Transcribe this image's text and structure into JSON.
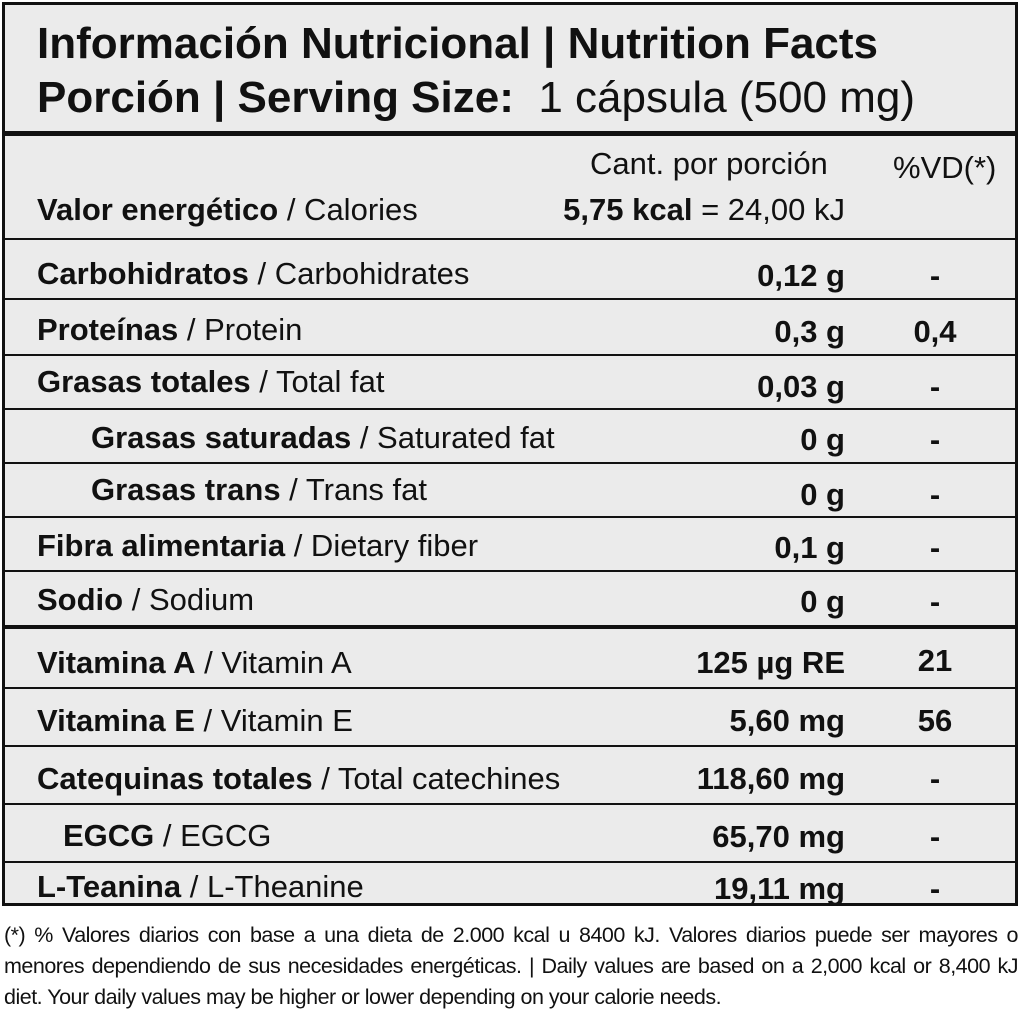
{
  "header": {
    "title": "Información Nutricional | Nutrition Facts",
    "serving_label": "Porción | Serving Size:",
    "serving_value": "1 cápsula (500 mg)"
  },
  "columns": {
    "amount_header": "Cant. por porción",
    "dv_header": "%VD(*)"
  },
  "energy": {
    "label_es": "Valor energético",
    "label_en": " / Calories",
    "kcal": "5,75 kcal",
    "kj": " = 24,00 kJ"
  },
  "rows": [
    {
      "label_es": "Carbohidratos",
      "label_en": " / Carbohidrates",
      "amount": "0,12 g",
      "dv": "-"
    },
    {
      "label_es": "Proteínas",
      "label_en": " / Protein",
      "amount": "0,3 g",
      "dv": "0,4"
    },
    {
      "label_es": "Grasas totales",
      "label_en": " / Total fat",
      "amount": "0,03 g",
      "dv": "-"
    },
    {
      "label_es": "Grasas saturadas",
      "label_en": " / Saturated fat",
      "amount": "0 g",
      "dv": "-"
    },
    {
      "label_es": "Grasas trans",
      "label_en": " / Trans fat",
      "amount": "0 g",
      "dv": "-"
    },
    {
      "label_es": "Fibra alimentaria",
      "label_en": " / Dietary fiber",
      "amount": "0,1 g",
      "dv": "-"
    },
    {
      "label_es": "Sodio",
      "label_en": " / Sodium",
      "amount": "0 g",
      "dv": "-"
    },
    {
      "label_es": "Vitamina A",
      "label_en": " / Vitamin A",
      "amount": "125 µg RE",
      "dv": "21"
    },
    {
      "label_es": "Vitamina E",
      "label_en": " / Vitamin E",
      "amount": "5,60 mg",
      "dv": "56"
    },
    {
      "label_es": "Catequinas totales",
      "label_en": " / Total catechines",
      "amount": "118,60 mg",
      "dv": "-"
    },
    {
      "label_es": "EGCG",
      "label_en": " / EGCG",
      "amount": "65,70 mg",
      "dv": "-"
    },
    {
      "label_es": "L-Teanina",
      "label_en": " / L-Theanine",
      "amount": "19,11 mg",
      "dv": "-"
    }
  ],
  "footnote": "(*) % Valores diarios con base a una dieta de 2.000 kcal u 8400 kJ. Valores diarios puede ser mayores o menores dependiendo de sus necesidades energéticas. | Daily values are based on a 2,000 kcal or 8,400 kJ diet. Your daily values may be higher or lower depending on your calorie needs."
}
